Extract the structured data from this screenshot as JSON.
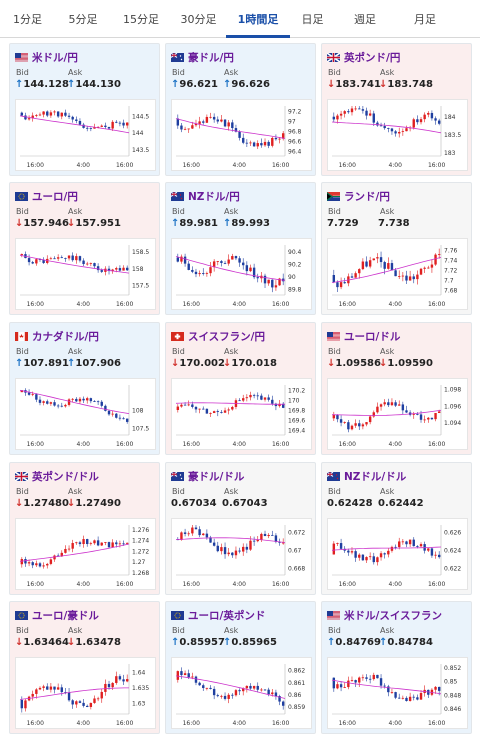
{
  "tabs": [
    {
      "label": "1分足",
      "active": false
    },
    {
      "label": "5分足",
      "active": false
    },
    {
      "label": "15分足",
      "active": false
    },
    {
      "label": "30分足",
      "active": false
    },
    {
      "label": "1時間足",
      "active": true
    },
    {
      "label": "日足",
      "active": false
    },
    {
      "label": "週足",
      "active": false
    },
    {
      "label": "月足",
      "active": false
    }
  ],
  "labels": {
    "bid": "Bid",
    "ask": "Ask"
  },
  "colors": {
    "up": "#1c72c4",
    "down": "#d0302c",
    "candle_up": "#e02020",
    "candle_down": "#1f3fa0",
    "ma": "#cc33cc",
    "accent": "#1a4fa8"
  },
  "cards": [
    {
      "name": "usd-jpy",
      "title": "米ドル/円",
      "flag": "us",
      "trend": "up",
      "bid": "144.128",
      "ask": "144.130",
      "chart_data": {
        "type": "candlestick",
        "x_ticks": [
          "16:00",
          "4:00",
          "16:00"
        ],
        "y_ticks": [
          "144.5",
          "144",
          "143.5"
        ],
        "ylim": [
          143.3,
          144.8
        ],
        "seed": 11,
        "start": 144.6,
        "end": 144.13,
        "wave": 0.15,
        "ma_start": 144.55,
        "ma_end": 143.95,
        "vol": 0.18
      }
    },
    {
      "name": "aud-jpy",
      "title": "豪ドル/円",
      "flag": "au",
      "trend": "up",
      "bid": "96.621",
      "ask": "96.626",
      "chart_data": {
        "type": "candlestick",
        "x_ticks": [
          "16:00",
          "4:00",
          "16:00"
        ],
        "y_ticks": [
          "97.2",
          "97",
          "96.8",
          "96.6",
          "96.4"
        ],
        "ylim": [
          96.3,
          97.3
        ],
        "seed": 23,
        "start": 97.05,
        "end": 96.55,
        "wave": 0.2,
        "ma_start": 97.1,
        "ma_end": 96.6,
        "vol": 0.16
      }
    },
    {
      "name": "gbp-jpy",
      "title": "英ポンド/円",
      "flag": "gb",
      "trend": "down",
      "bid": "183.741",
      "ask": "183.748",
      "chart_data": {
        "type": "candlestick",
        "x_ticks": [
          "16:00",
          "4:00",
          "16:00"
        ],
        "y_ticks": [
          "184",
          "183.5",
          "183"
        ],
        "ylim": [
          182.9,
          184.3
        ],
        "seed": 37,
        "start": 184.0,
        "end": 183.74,
        "wave": 0.25,
        "ma_start": 183.9,
        "ma_end": 183.5,
        "vol": 0.2
      }
    },
    {
      "name": "eur-jpy",
      "title": "ユーロ/円",
      "flag": "eu",
      "trend": "down",
      "bid": "157.946",
      "ask": "157.951",
      "chart_data": {
        "type": "candlestick",
        "x_ticks": [
          "16:00",
          "4:00",
          "16:00"
        ],
        "y_ticks": [
          "158.5",
          "158",
          "157.5"
        ],
        "ylim": [
          157.2,
          158.7
        ],
        "seed": 41,
        "start": 158.4,
        "end": 157.95,
        "wave": 0.12,
        "ma_start": 158.4,
        "ma_end": 157.85,
        "vol": 0.2
      }
    },
    {
      "name": "nzd-jpy",
      "title": "NZドル/円",
      "flag": "nz",
      "trend": "up",
      "bid": "89.981",
      "ask": "89.993",
      "chart_data": {
        "type": "candlestick",
        "x_ticks": [
          "16:00",
          "4:00",
          "16:00"
        ],
        "y_ticks": [
          "90.4",
          "90.2",
          "90",
          "89.8"
        ],
        "ylim": [
          89.7,
          90.5
        ],
        "seed": 53,
        "start": 90.3,
        "end": 89.98,
        "wave": 0.14,
        "ma_start": 90.3,
        "ma_end": 89.95,
        "vol": 0.14
      }
    },
    {
      "name": "zar-jpy",
      "title": "ランド/円",
      "flag": "za",
      "trend": "flat",
      "bid": "7.729",
      "ask": "7.738",
      "chart_data": {
        "type": "candlestick",
        "x_ticks": [
          "16:00",
          "4:00",
          "16:00"
        ],
        "y_ticks": [
          "7.76",
          "7.74",
          "7.72",
          "7.7",
          "7.68"
        ],
        "ylim": [
          7.67,
          7.77
        ],
        "seed": 67,
        "start": 7.71,
        "end": 7.73,
        "wave": 0.02,
        "ma_start": 7.7,
        "ma_end": 7.74,
        "vol": 0.02
      }
    },
    {
      "name": "cad-jpy",
      "title": "カナダドル/円",
      "flag": "ca",
      "trend": "up",
      "bid": "107.891",
      "ask": "107.906",
      "chart_data": {
        "type": "candlestick",
        "x_ticks": [
          "16:00",
          "4:00",
          "16:00"
        ],
        "y_ticks": [
          "108",
          "107.5"
        ],
        "ylim": [
          107.3,
          108.7
        ],
        "seed": 71,
        "start": 108.5,
        "end": 107.9,
        "wave": 0.18,
        "ma_start": 108.5,
        "ma_end": 107.95,
        "vol": 0.16
      }
    },
    {
      "name": "chf-jpy",
      "title": "スイスフラン/円",
      "flag": "ch",
      "trend": "down",
      "bid": "170.002",
      "ask": "170.018",
      "chart_data": {
        "type": "candlestick",
        "x_ticks": [
          "16:00",
          "4:00",
          "16:00"
        ],
        "y_ticks": [
          "170.2",
          "170",
          "169.8",
          "169.6",
          "169.4"
        ],
        "ylim": [
          169.3,
          170.3
        ],
        "seed": 83,
        "start": 169.8,
        "end": 170.0,
        "wave": 0.12,
        "ma_start": 169.9,
        "ma_end": 169.95,
        "vol": 0.14
      }
    },
    {
      "name": "eur-usd",
      "title": "ユーロ/ドル",
      "flag": "us",
      "trend": "down",
      "bid": "1.09586",
      "ask": "1.09590",
      "chart_data": {
        "type": "candlestick",
        "x_ticks": [
          "16:00",
          "4:00",
          "16:00"
        ],
        "y_ticks": [
          "1.098",
          "1.096",
          "1.094"
        ],
        "ylim": [
          1.0925,
          1.0985
        ],
        "seed": 97,
        "start": 1.0945,
        "end": 1.0958,
        "wave": 0.0012,
        "ma_start": 1.0948,
        "ma_end": 1.0956,
        "vol": 0.0009
      }
    },
    {
      "name": "gbp-usd",
      "title": "英ポンド/ドル",
      "flag": "gb",
      "trend": "down",
      "bid": "1.27480",
      "ask": "1.27490",
      "chart_data": {
        "type": "candlestick",
        "x_ticks": [
          "16:00",
          "4:00",
          "16:00"
        ],
        "y_ticks": [
          "1.276",
          "1.274",
          "1.272",
          "1.27",
          "1.268"
        ],
        "ylim": [
          1.2675,
          1.2768
        ],
        "seed": 103,
        "start": 1.2695,
        "end": 1.2748,
        "wave": 0.0012,
        "ma_start": 1.2698,
        "ma_end": 1.2735,
        "vol": 0.0012
      }
    },
    {
      "name": "aud-usd",
      "title": "豪ドル/ドル",
      "flag": "au",
      "trend": "flat",
      "bid": "0.67034",
      "ask": "0.67043",
      "chart_data": {
        "type": "candlestick",
        "x_ticks": [
          "16:00",
          "4:00",
          "16:00"
        ],
        "y_ticks": [
          "0.672",
          "0.67",
          "0.668"
        ],
        "ylim": [
          0.6672,
          0.6728
        ],
        "seed": 113,
        "start": 0.6712,
        "end": 0.6703,
        "wave": 0.0012,
        "ma_start": 0.6712,
        "ma_end": 0.6708,
        "vol": 0.0009
      }
    },
    {
      "name": "nzd-usd",
      "title": "NZドル/ドル",
      "flag": "nz",
      "trend": "flat",
      "bid": "0.62428",
      "ask": "0.62442",
      "chart_data": {
        "type": "candlestick",
        "x_ticks": [
          "16:00",
          "4:00",
          "16:00"
        ],
        "y_ticks": [
          "0.626",
          "0.624",
          "0.622"
        ],
        "ylim": [
          0.6212,
          0.6268
        ],
        "seed": 127,
        "start": 0.6235,
        "end": 0.6243,
        "wave": 0.0009,
        "ma_start": 0.6237,
        "ma_end": 0.6246,
        "vol": 0.0008
      }
    },
    {
      "name": "eur-aud",
      "title": "ユーロ/豪ドル",
      "flag": "eu",
      "trend": "down",
      "bid": "1.63464",
      "ask": "1.63478",
      "chart_data": {
        "type": "candlestick",
        "x_ticks": [
          "16:00",
          "4:00",
          "16:00"
        ],
        "y_ticks": [
          "1.64",
          "1.635",
          "1.63"
        ],
        "ylim": [
          1.6265,
          1.6425
        ],
        "seed": 131,
        "start": 1.631,
        "end": 1.6346,
        "wave": 0.0035,
        "ma_start": 1.632,
        "ma_end": 1.634,
        "vol": 0.0025
      }
    },
    {
      "name": "eur-gbp",
      "title": "ユーロ/英ポンド",
      "flag": "eu",
      "trend": "up",
      "bid": "0.85957",
      "ask": "0.85965",
      "chart_data": {
        "type": "candlestick",
        "x_ticks": [
          "16:00",
          "4:00",
          "16:00"
        ],
        "y_ticks": [
          "0.862",
          "0.861",
          "0.86",
          "0.859"
        ],
        "ylim": [
          0.8584,
          0.8625
        ],
        "seed": 139,
        "start": 0.8612,
        "end": 0.8596,
        "wave": 0.0006,
        "ma_start": 0.8614,
        "ma_end": 0.8598,
        "vol": 0.0006
      }
    },
    {
      "name": "usd-chf",
      "title": "米ドル/スイスフラン",
      "flag": "us",
      "trend": "up",
      "bid": "0.84769",
      "ask": "0.84784",
      "chart_data": {
        "type": "candlestick",
        "x_ticks": [
          "16:00",
          "4:00",
          "16:00"
        ],
        "y_ticks": [
          "0.852",
          "0.85",
          "0.848",
          "0.846"
        ],
        "ylim": [
          0.8452,
          0.8525
        ],
        "seed": 149,
        "start": 0.8505,
        "end": 0.8477,
        "wave": 0.0012,
        "ma_start": 0.8505,
        "ma_end": 0.8478,
        "vol": 0.0011
      }
    }
  ]
}
